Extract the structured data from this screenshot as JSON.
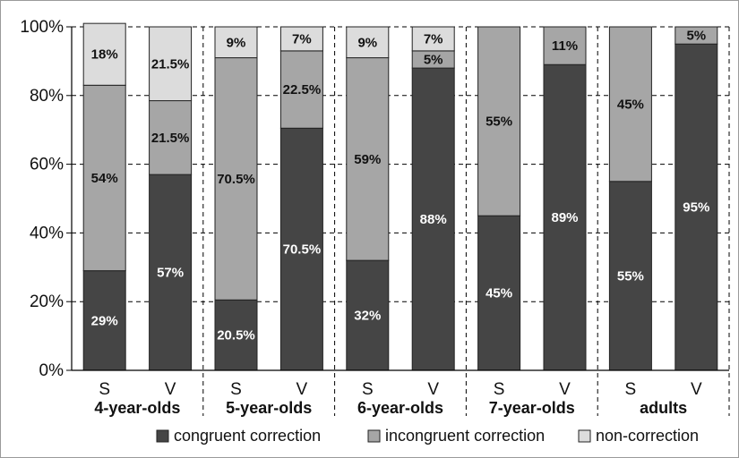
{
  "chart_data": {
    "type": "bar",
    "stacked": true,
    "ylim": [
      0,
      100
    ],
    "yticks": [
      "0%",
      "20%",
      "40%",
      "60%",
      "80%",
      "100%"
    ],
    "grid": true,
    "legend_position": "bottom",
    "groups": [
      "4-year-olds",
      "5-year-olds",
      "6-year-olds",
      "7-year-olds",
      "adults"
    ],
    "categories": [
      "S",
      "V",
      "S",
      "V",
      "S",
      "V",
      "S",
      "V",
      "S",
      "V"
    ],
    "series": [
      {
        "name": "congruent correction",
        "color": "#454545",
        "label_color": "#ffffff",
        "values": [
          29,
          57,
          20.5,
          70.5,
          32,
          88,
          45,
          89,
          55,
          95
        ],
        "labels": [
          "29%",
          "57%",
          "20.5%",
          "70.5%",
          "32%",
          "88%",
          "45%",
          "89%",
          "55%",
          "95%"
        ]
      },
      {
        "name": "incongruent correction",
        "color": "#a6a6a6",
        "label_color": "#111111",
        "values": [
          54,
          21.5,
          70.5,
          22.5,
          59,
          5,
          55,
          11,
          45,
          5
        ],
        "labels": [
          "54%",
          "21.5%",
          "70.5%",
          "22.5%",
          "59%",
          "5%",
          "55%",
          "11%",
          "45%",
          "5%"
        ]
      },
      {
        "name": "non-correction",
        "color": "#dcdcdc",
        "label_color": "#111111",
        "values": [
          18,
          21.5,
          9,
          7,
          9,
          7,
          0,
          0,
          0,
          0
        ],
        "labels": [
          "18%",
          "21.5%",
          "9%",
          "7%",
          "9%",
          "7%",
          "",
          "",
          "",
          ""
        ]
      }
    ]
  }
}
